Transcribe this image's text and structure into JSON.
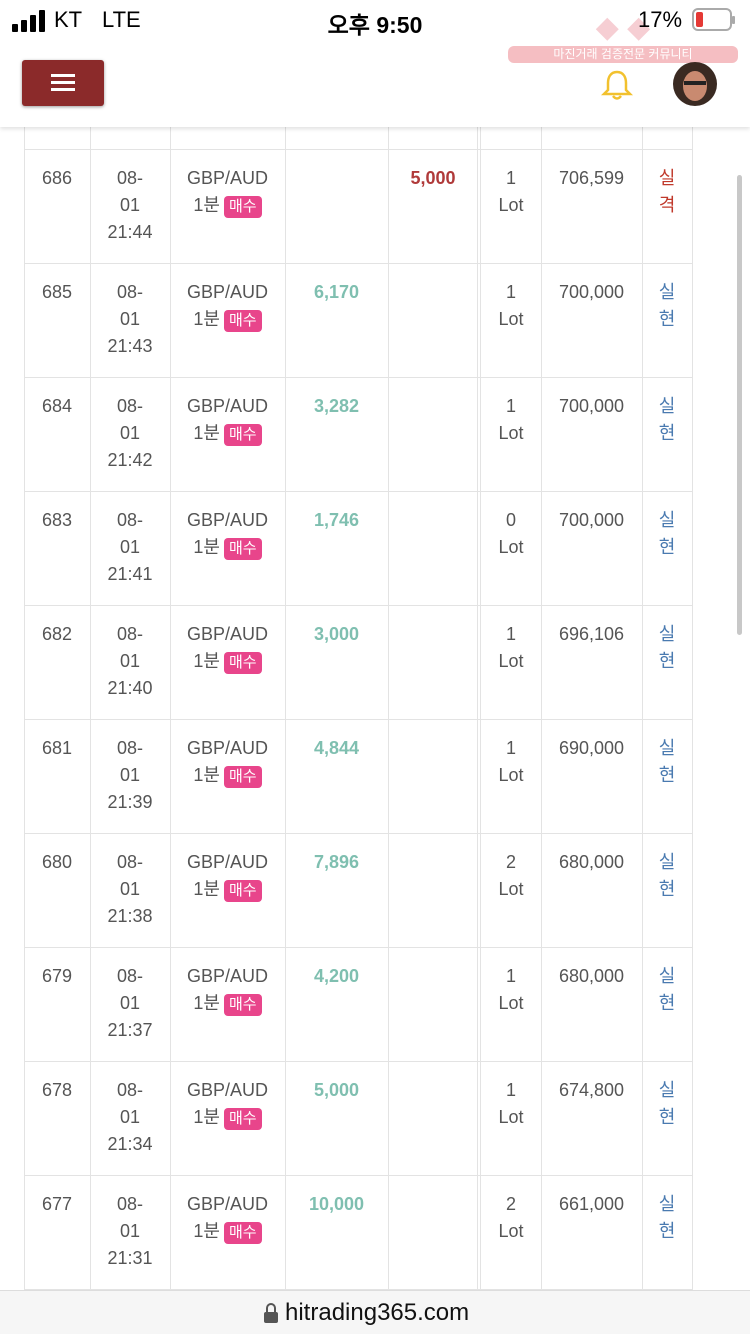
{
  "status_bar": {
    "carrier": "KT",
    "network": "LTE",
    "time": "오후 9:50",
    "battery": "17%"
  },
  "watermark": {
    "caption": "마진거래 검증전문 커뮤니티"
  },
  "table": {
    "rows": [
      {
        "id": "686",
        "date_lines": [
          "08-",
          "01",
          "21:44"
        ],
        "pair": "GBP/AUD",
        "period": "1분",
        "side": "매수",
        "profit": null,
        "loss": "5,000",
        "lot": "1 Lot",
        "balance": "706,599",
        "status": "실격"
      },
      {
        "id": "685",
        "date_lines": [
          "08-",
          "01",
          "21:43"
        ],
        "pair": "GBP/AUD",
        "period": "1분",
        "side": "매수",
        "profit": "6,170",
        "loss": null,
        "lot": "1 Lot",
        "balance": "700,000",
        "status": "실현"
      },
      {
        "id": "684",
        "date_lines": [
          "08-",
          "01",
          "21:42"
        ],
        "pair": "GBP/AUD",
        "period": "1분",
        "side": "매수",
        "profit": "3,282",
        "loss": null,
        "lot": "1 Lot",
        "balance": "700,000",
        "status": "실현"
      },
      {
        "id": "683",
        "date_lines": [
          "08-",
          "01",
          "21:41"
        ],
        "pair": "GBP/AUD",
        "period": "1분",
        "side": "매수",
        "profit": "1,746",
        "loss": null,
        "lot": "0 Lot",
        "balance": "700,000",
        "status": "실현"
      },
      {
        "id": "682",
        "date_lines": [
          "08-",
          "01",
          "21:40"
        ],
        "pair": "GBP/AUD",
        "period": "1분",
        "side": "매수",
        "profit": "3,000",
        "loss": null,
        "lot": "1 Lot",
        "balance": "696,106",
        "status": "실현"
      },
      {
        "id": "681",
        "date_lines": [
          "08-",
          "01",
          "21:39"
        ],
        "pair": "GBP/AUD",
        "period": "1분",
        "side": "매수",
        "profit": "4,844",
        "loss": null,
        "lot": "1 Lot",
        "balance": "690,000",
        "status": "실현"
      },
      {
        "id": "680",
        "date_lines": [
          "08-",
          "01",
          "21:38"
        ],
        "pair": "GBP/AUD",
        "period": "1분",
        "side": "매수",
        "profit": "7,896",
        "loss": null,
        "lot": "2 Lot",
        "balance": "680,000",
        "status": "실현"
      },
      {
        "id": "679",
        "date_lines": [
          "08-",
          "01",
          "21:37"
        ],
        "pair": "GBP/AUD",
        "period": "1분",
        "side": "매수",
        "profit": "4,200",
        "loss": null,
        "lot": "1 Lot",
        "balance": "680,000",
        "status": "실현"
      },
      {
        "id": "678",
        "date_lines": [
          "08-",
          "01",
          "21:34"
        ],
        "pair": "GBP/AUD",
        "period": "1분",
        "side": "매수",
        "profit": "5,000",
        "loss": null,
        "lot": "1 Lot",
        "balance": "674,800",
        "status": "실현"
      },
      {
        "id": "677",
        "date_lines": [
          "08-",
          "01",
          "21:31"
        ],
        "pair": "GBP/AUD",
        "period": "1분",
        "side": "매수",
        "profit": "10,000",
        "loss": null,
        "lot": "2 Lot",
        "balance": "661,000",
        "status": "실현"
      }
    ]
  },
  "url_bar": {
    "url": "hitrading365.com"
  }
}
